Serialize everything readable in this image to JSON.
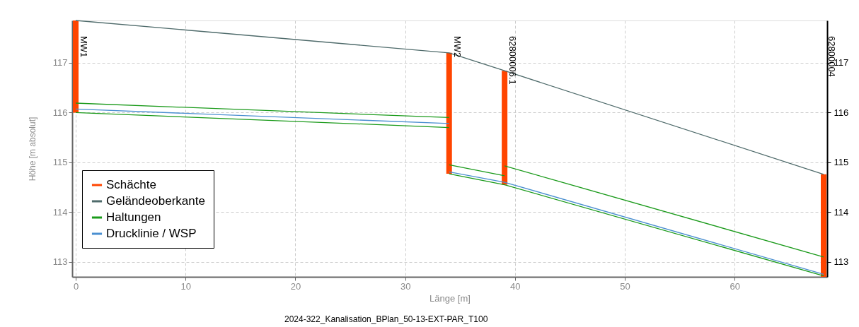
{
  "chart_data": {
    "type": "line",
    "xlabel": "Länge [m]",
    "ylabel": "Höhe [m absolut]",
    "xlim": [
      0,
      68.1
    ],
    "xticks": [
      0,
      10,
      20,
      30,
      40,
      50,
      60
    ],
    "ylim": [
      112.7,
      117.85
    ],
    "yticks": [
      113,
      114,
      115,
      116,
      117
    ],
    "y2lim": [
      112.7,
      117.85
    ],
    "y2ticks": [
      113,
      114,
      115,
      116,
      117
    ],
    "grid": true,
    "legend": "bottom left",
    "series": [
      {
        "name": "Schächte",
        "type": "bar",
        "color": "#ff4500",
        "x": [
          0,
          34,
          39.05,
          68.1
        ],
        "base": [
          116.0,
          114.77,
          114.55,
          112.7
        ],
        "values": [
          1.85,
          2.43,
          2.29,
          2.06
        ]
      },
      {
        "name": "Geländeoberkante",
        "color": "#4f6b6b",
        "x": [
          0,
          34,
          39.05,
          68.1
        ],
        "values": [
          117.85,
          117.2,
          116.84,
          114.76
        ]
      },
      {
        "name": "Haltungen",
        "color": "#1a9a1a",
        "x": [
          0,
          34
        ],
        "values": [
          116.19,
          115.9
        ]
      },
      {
        "color": "#1a9a1a",
        "x": [
          0,
          34
        ],
        "values": [
          116.0,
          115.7
        ]
      },
      {
        "color": "#1a9a1a",
        "x": [
          34,
          39.05
        ],
        "values": [
          114.95,
          114.73
        ]
      },
      {
        "color": "#1a9a1a",
        "x": [
          34,
          39.05,
          68.1
        ],
        "values": [
          114.77,
          114.55,
          112.72
        ]
      },
      {
        "color": "#1a9a1a",
        "x": [
          39.05,
          68.1
        ],
        "values": [
          114.93,
          113.1
        ]
      },
      {
        "name": "Drucklinie / WSP",
        "color": "#4a8fd0",
        "x": [
          0,
          34
        ],
        "values": [
          116.07,
          115.78
        ]
      },
      {
        "color": "#4a8fd0",
        "x": [
          34,
          39.05,
          68.1
        ],
        "values": [
          114.81,
          114.6,
          112.75
        ]
      }
    ],
    "annotations": [
      "MW1",
      "MW2",
      "62800006.1",
      "62800004",
      "2024-322_Kanalisation_BPlan_50-13-EXT-PAR_T100"
    ]
  }
}
